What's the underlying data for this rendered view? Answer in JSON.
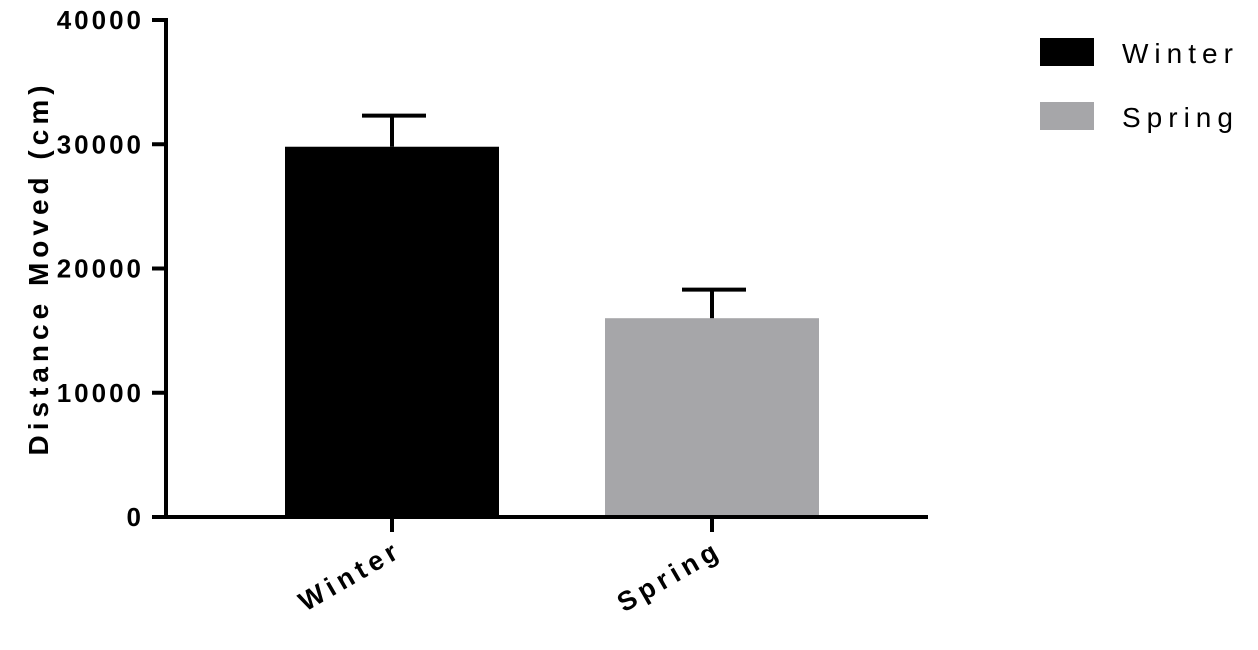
{
  "chart_data": {
    "type": "bar",
    "categories": [
      "Winter",
      "Spring"
    ],
    "values": [
      29800,
      16000
    ],
    "errors": [
      2500,
      2300
    ],
    "colors": [
      "#000000",
      "#a6a6a9"
    ],
    "xlabel": "",
    "ylabel": "Distance Moved (cm)",
    "ylim": [
      0,
      40000
    ],
    "yticks": [
      "0",
      "10000",
      "20000",
      "30000",
      "40000"
    ],
    "legend": {
      "position": "top-right",
      "entries": [
        {
          "label": "Winter",
          "color": "#000000"
        },
        {
          "label": "Spring",
          "color": "#a6a6a9"
        }
      ]
    },
    "grid": false
  }
}
